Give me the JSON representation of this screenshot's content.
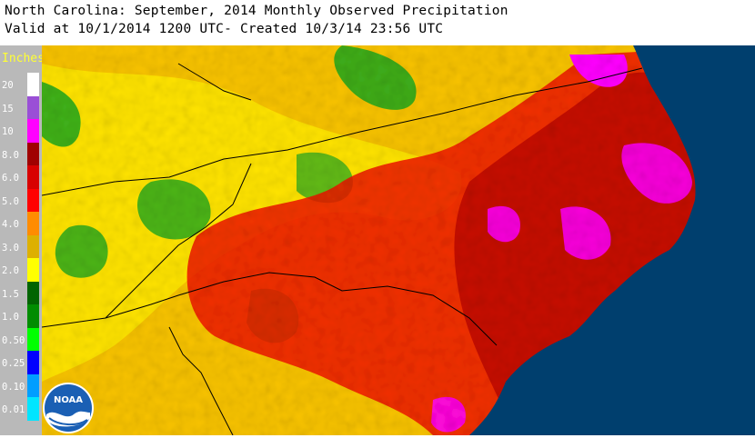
{
  "header": {
    "title": "North Carolina: September, 2014 Monthly Observed Precipitation",
    "subtitle": "Valid at 10/1/2014 1200 UTC- Created 10/3/14 23:56 UTC"
  },
  "legend": {
    "unit": "Inches",
    "classes": [
      {
        "label": "20",
        "color": "#ffffff"
      },
      {
        "label": "15",
        "color": "#9a4fd6"
      },
      {
        "label": "10",
        "color": "#ff00ff"
      },
      {
        "label": "8.0",
        "color": "#a00000"
      },
      {
        "label": "6.0",
        "color": "#d80000"
      },
      {
        "label": "5.0",
        "color": "#ff0000"
      },
      {
        "label": "4.0",
        "color": "#ff8c00"
      },
      {
        "label": "3.0",
        "color": "#ddb000"
      },
      {
        "label": "2.0",
        "color": "#ffff00"
      },
      {
        "label": "1.5",
        "color": "#006400"
      },
      {
        "label": "1.0",
        "color": "#008c00"
      },
      {
        "label": "0.50",
        "color": "#00ff00"
      },
      {
        "label": "0.25",
        "color": "#0000ff"
      },
      {
        "label": "0.10",
        "color": "#009eff"
      },
      {
        "label": "0.01",
        "color": "#00e5ff"
      }
    ]
  },
  "map": {
    "ocean_color": "#003f6e",
    "boundary_color": "#000000"
  },
  "logo": {
    "text": "NOAA"
  }
}
